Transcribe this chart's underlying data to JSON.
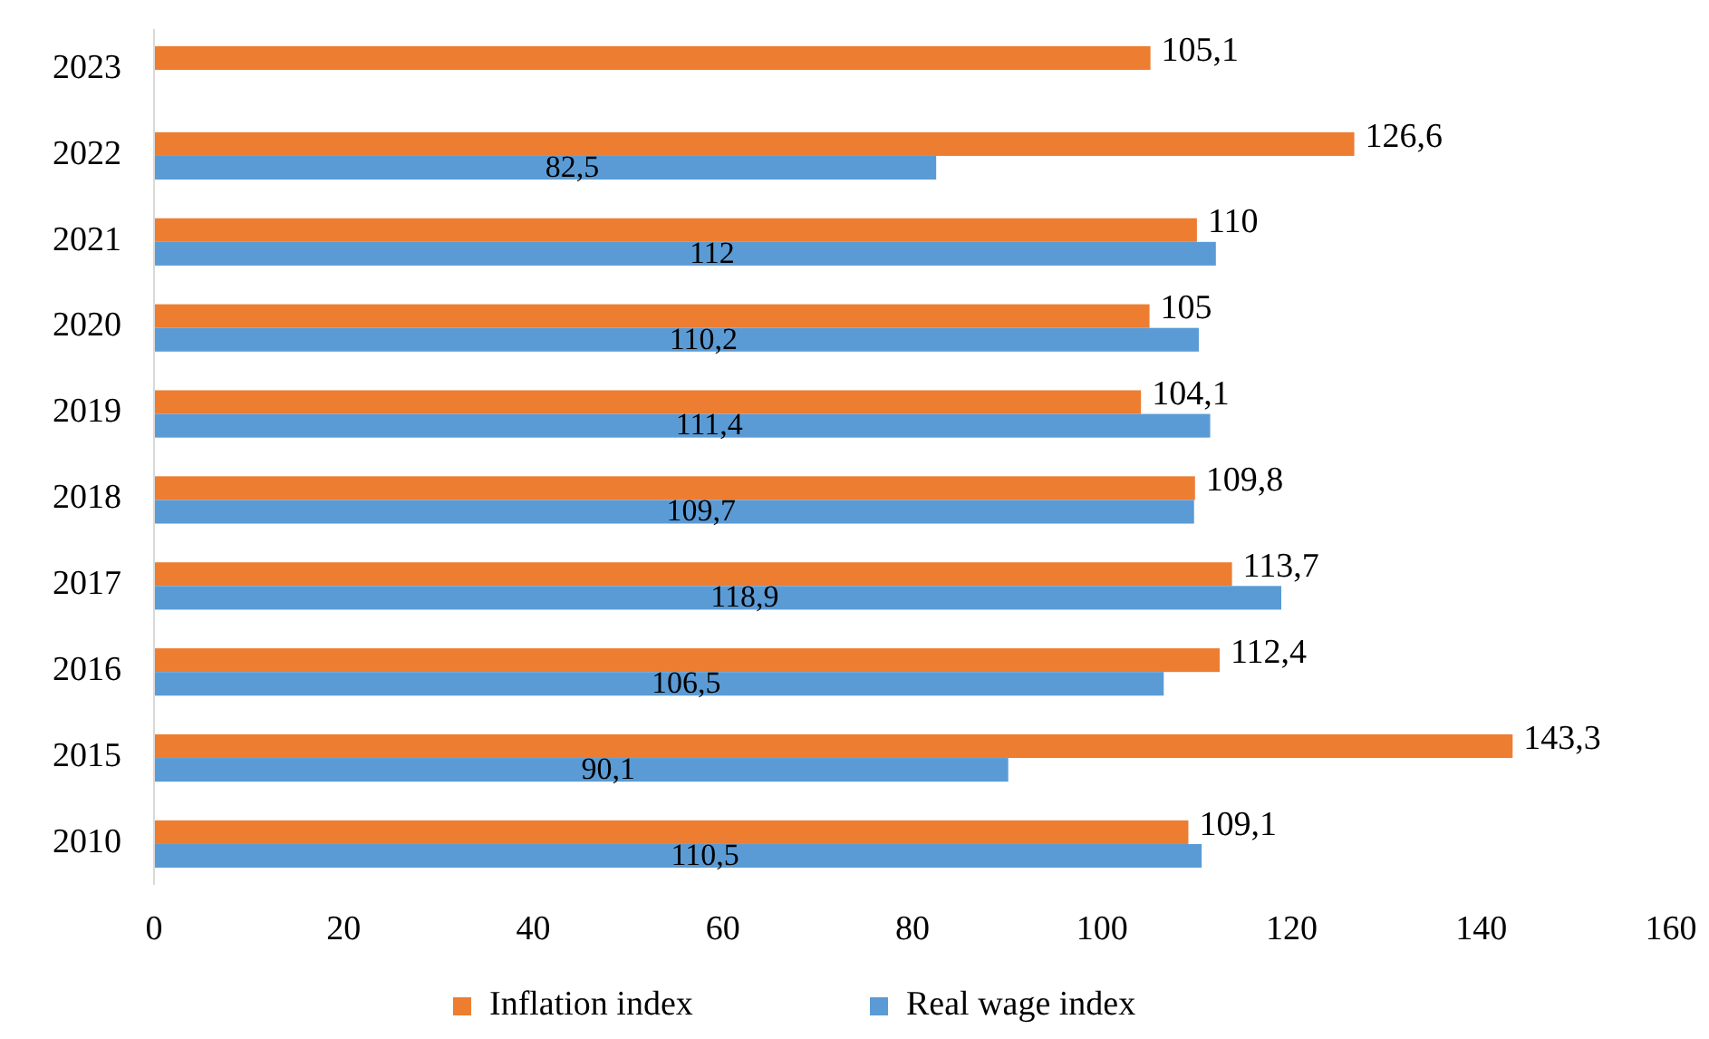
{
  "chart_data": {
    "type": "bar",
    "orientation": "horizontal",
    "categories": [
      "2023",
      "2022",
      "2021",
      "2020",
      "2019",
      "2018",
      "2017",
      "2016",
      "2015",
      "2010"
    ],
    "series": [
      {
        "name": "Inflation index",
        "color": "#ed7d31",
        "values": [
          105.1,
          126.6,
          110,
          105,
          104.1,
          109.8,
          113.7,
          112.4,
          143.3,
          109.1
        ],
        "value_labels": [
          "105,1",
          "126,6",
          "110",
          "105",
          "104,1",
          "109,8",
          "113,7",
          "112,4",
          "143,3",
          "109,1"
        ]
      },
      {
        "name": "Real wage index",
        "color": "#5b9bd5",
        "values": [
          null,
          82.5,
          112,
          110.2,
          111.4,
          109.7,
          118.9,
          106.5,
          90.1,
          110.5
        ],
        "value_labels": [
          null,
          "82,5",
          "112",
          "110,2",
          "111,4",
          "109,7",
          "118,9",
          "106,5",
          "90,1",
          "110,5"
        ]
      }
    ],
    "xlim": [
      0,
      160
    ],
    "xticks": [
      0,
      20,
      40,
      60,
      80,
      100,
      120,
      140,
      160
    ],
    "grid": false,
    "legend": "bottom"
  }
}
